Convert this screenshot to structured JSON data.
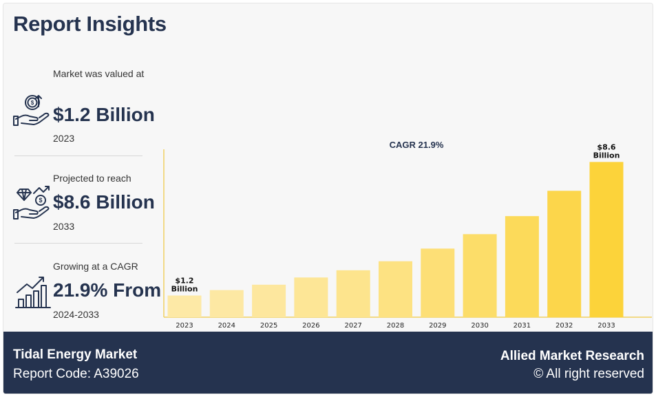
{
  "header": {
    "title": "Report Insights"
  },
  "stats": [
    {
      "caption": "Market was valued at",
      "value": "$1.2 Billion",
      "sub": "2023",
      "icon": "money-hand-icon"
    },
    {
      "caption": "Projected to reach",
      "value": "$8.6 Billion",
      "sub": "2033",
      "icon": "diamond-hand-icon"
    },
    {
      "caption": "Growing at a CAGR",
      "value": "21.9% From",
      "sub": "2024-2033",
      "icon": "growth-chart-icon"
    }
  ],
  "chart_data": {
    "type": "bar",
    "annotation": "CAGR 21.9%",
    "categories": [
      "2023",
      "2024",
      "2025",
      "2026",
      "2027",
      "2028",
      "2029",
      "2030",
      "2031",
      "2032",
      "2033"
    ],
    "values": [
      1.2,
      1.5,
      1.8,
      2.2,
      2.6,
      3.1,
      3.8,
      4.6,
      5.6,
      7.0,
      8.6
    ],
    "data_labels": [
      {
        "index": 0,
        "line1": "$1.2",
        "line2": "Billion"
      },
      {
        "index": 10,
        "line1": "$8.6",
        "line2": "Billion"
      }
    ],
    "ylim": [
      0,
      9.3
    ],
    "colors": {
      "light": "#fde9a6",
      "dark": "#fcd33a",
      "axis": "#f0d060"
    }
  },
  "footer": {
    "market": "Tidal Energy Market",
    "report_code": "Report Code: A39026",
    "brand": "Allied Market Research",
    "rights": "© All right reserved"
  }
}
